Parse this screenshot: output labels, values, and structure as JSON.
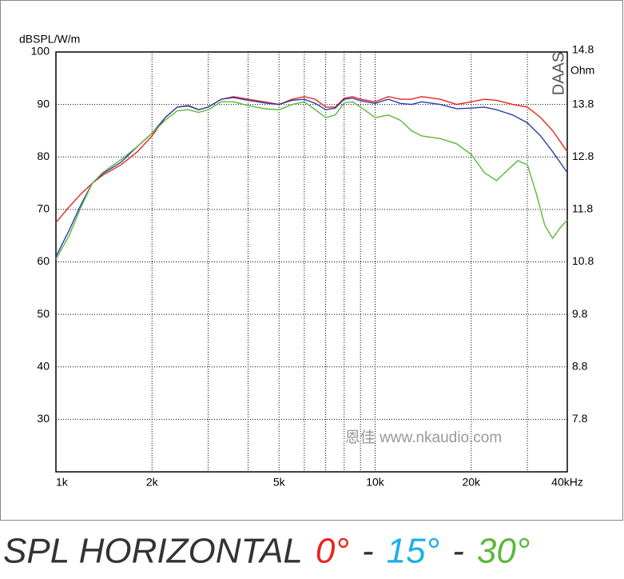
{
  "chart_data": {
    "type": "line",
    "y_label": "dBSPL/W/m",
    "y2_label": "Ohm",
    "brand": "DAAS",
    "watermark": "恩佳 www.nkaudio.com",
    "caption": "SPL HORIZONTAL",
    "separator": "-",
    "log_x": true,
    "grid": true,
    "xlim": [
      1000,
      40000
    ],
    "xticks": [
      {
        "value": 1000,
        "label": "1k"
      },
      {
        "value": 2000,
        "label": "2k"
      },
      {
        "value": 5000,
        "label": "5k"
      },
      {
        "value": 10000,
        "label": "10k"
      },
      {
        "value": 20000,
        "label": "20k"
      },
      {
        "value": 40000,
        "label": "40kHz"
      }
    ],
    "xminor": [
      3000,
      4000,
      6000,
      7000,
      8000,
      9000,
      30000
    ],
    "ylim": [
      20,
      100
    ],
    "yticks": [
      30,
      40,
      50,
      60,
      70,
      80,
      90,
      100
    ],
    "y2lim": [
      6.8,
      14.8
    ],
    "y2ticks": [
      7.8,
      8.8,
      9.8,
      10.8,
      11.8,
      12.8,
      13.8,
      14.8
    ],
    "series": [
      {
        "name": "0°",
        "color": "#e8251c",
        "label_color": "#e8251c",
        "x": [
          1000,
          1100,
          1200,
          1300,
          1400,
          1600,
          1800,
          2000,
          2200,
          2400,
          2600,
          2800,
          3000,
          3300,
          3600,
          4000,
          4500,
          5000,
          5500,
          6000,
          6500,
          7000,
          7500,
          8000,
          8500,
          9000,
          10000,
          11000,
          12000,
          13000,
          14000,
          16000,
          18000,
          20000,
          22000,
          24000,
          27000,
          30000,
          33000,
          36000,
          40000
        ],
        "values": [
          67.5,
          70.5,
          73,
          75,
          76.5,
          78.5,
          81,
          84,
          87.5,
          89.5,
          89.8,
          89,
          89.5,
          91,
          91.5,
          91,
          90.5,
          90,
          91,
          91.5,
          91,
          89.5,
          89.5,
          91.2,
          91.5,
          91,
          90.5,
          91.5,
          91,
          91,
          91.5,
          91,
          90,
          90.5,
          91,
          90.8,
          90,
          89.5,
          87.5,
          85,
          81
        ]
      },
      {
        "name": "15°",
        "color": "#2b3fa8",
        "label_color": "#1ab0e6",
        "x": [
          1000,
          1100,
          1200,
          1300,
          1400,
          1600,
          1800,
          2000,
          2200,
          2400,
          2600,
          2800,
          3000,
          3300,
          3600,
          4000,
          4500,
          5000,
          5500,
          6000,
          6500,
          7000,
          7500,
          8000,
          8500,
          9000,
          10000,
          11000,
          12000,
          13000,
          14000,
          16000,
          18000,
          20000,
          22000,
          24000,
          27000,
          30000,
          33000,
          36000,
          40000
        ],
        "values": [
          61,
          66,
          71,
          75,
          76.8,
          79,
          82,
          84.5,
          87.5,
          89.5,
          89.7,
          89,
          89.5,
          91,
          91.3,
          90.8,
          90.3,
          90,
          90.8,
          91,
          90.2,
          89,
          89.3,
          91,
          91.2,
          90.7,
          90.2,
          91,
          90.2,
          90,
          90.5,
          90,
          89.2,
          89.3,
          89.5,
          89,
          88,
          86.5,
          84,
          81,
          77
        ]
      },
      {
        "name": "30°",
        "color": "#5cb83a",
        "label_color": "#5cb83a",
        "x": [
          1000,
          1100,
          1200,
          1300,
          1400,
          1600,
          1800,
          2000,
          2200,
          2400,
          2600,
          2800,
          3000,
          3300,
          3600,
          4000,
          4500,
          5000,
          5500,
          6000,
          6500,
          7000,
          7500,
          8000,
          8500,
          9000,
          10000,
          11000,
          12000,
          13000,
          14000,
          16000,
          18000,
          20000,
          22000,
          24000,
          26000,
          28000,
          30000,
          32000,
          34000,
          36000,
          38000,
          40000
        ],
        "values": [
          60.5,
          65,
          70.5,
          75,
          77,
          79.5,
          82,
          84.5,
          87,
          88.8,
          89,
          88.5,
          89,
          90.5,
          90.5,
          89.8,
          89.2,
          89,
          90,
          90.5,
          89,
          87.5,
          88,
          90.3,
          90.5,
          89.5,
          87.5,
          88,
          87,
          85,
          84,
          83.5,
          82.5,
          80.5,
          77,
          75.5,
          77.5,
          79.3,
          78.5,
          73,
          67,
          64.5,
          66.5,
          68
        ]
      }
    ]
  }
}
